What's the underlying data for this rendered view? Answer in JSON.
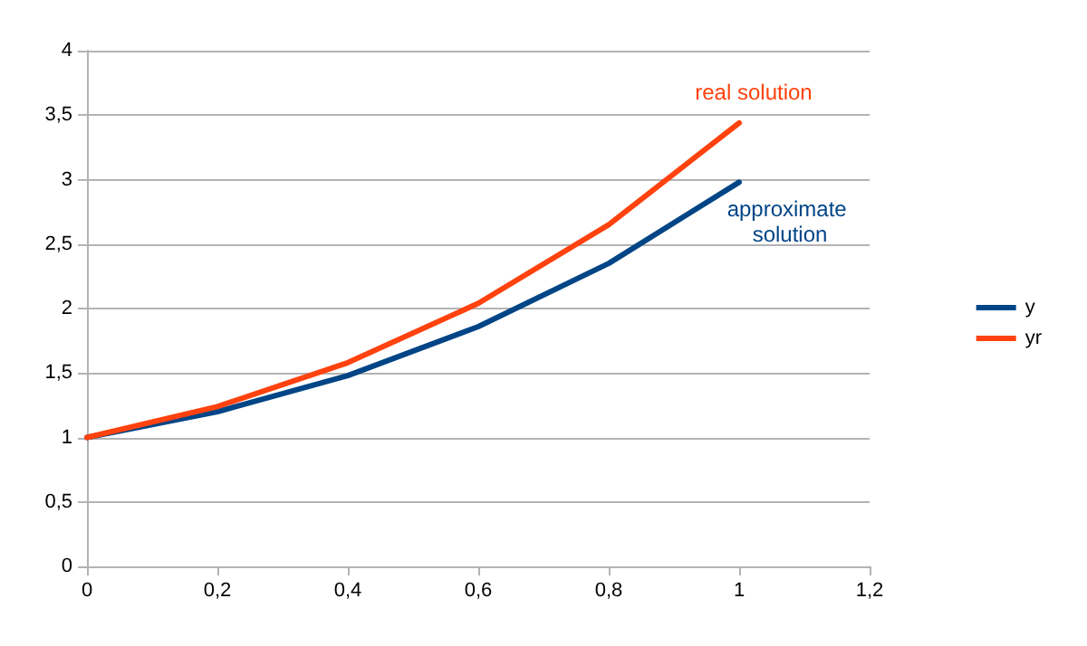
{
  "chart_data": {
    "type": "line",
    "x": [
      0,
      0.2,
      0.4,
      0.6,
      0.8,
      1
    ],
    "series": [
      {
        "name": "y",
        "color": "#004586",
        "values": [
          1,
          1.2,
          1.48,
          1.86,
          2.35,
          2.98
        ]
      },
      {
        "name": "yr",
        "color": "#ff420e",
        "values": [
          1,
          1.24,
          1.58,
          2.04,
          2.65,
          3.44
        ]
      }
    ],
    "xlim": [
      0,
      1.2
    ],
    "xticks": [
      0,
      {
        "value": 0.2,
        "label": "0,2"
      },
      {
        "value": 0.4,
        "label": "0,4"
      },
      {
        "value": 0.6,
        "label": "0,6"
      },
      {
        "value": 0.8,
        "label": "0,8"
      },
      1,
      {
        "value": 1.2,
        "label": "1,2"
      }
    ],
    "ylim": [
      0,
      4
    ],
    "yticks": [
      0,
      {
        "value": 0.5,
        "label": "0,5"
      },
      1,
      {
        "value": 1.5,
        "label": "1,5"
      },
      2,
      {
        "value": 2.5,
        "label": "2,5"
      },
      3,
      {
        "value": 3.5,
        "label": "3,5"
      },
      4
    ],
    "grid": "y",
    "legend": "right",
    "marker": "none",
    "line_style": "solid",
    "annotations": [
      "approximate solution",
      "real solution"
    ]
  }
}
